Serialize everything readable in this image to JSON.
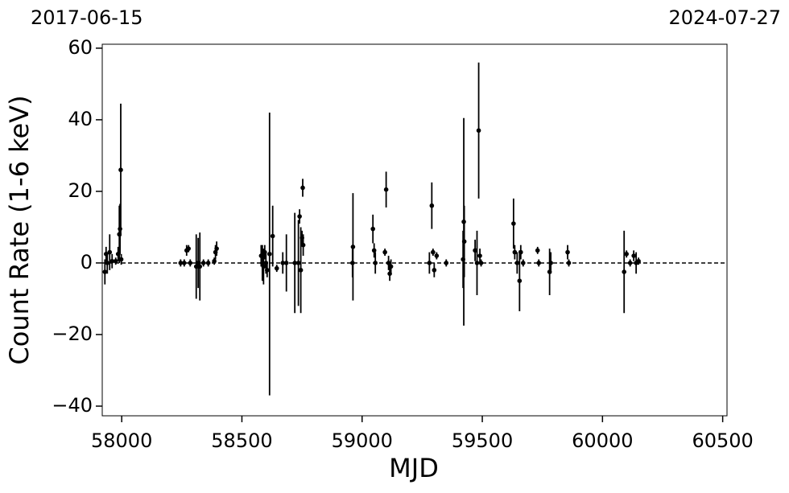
{
  "chart_data": {
    "type": "scatter",
    "top_labels": [
      "2017-06-15",
      "2024-07-27"
    ],
    "xlabel": "MJD",
    "ylabel": "Count Rate (1-6 keV)",
    "color": "#000000",
    "x": [
      57930,
      57935,
      57940,
      57950,
      57960,
      57975,
      57985,
      57990,
      57993,
      57996,
      57998,
      58245,
      58260,
      58270,
      58278,
      58285,
      58310,
      58318,
      58325,
      58340,
      58360,
      58385,
      58390,
      58395,
      58580,
      58585,
      58590,
      58595,
      58600,
      58605,
      58615,
      58628,
      58645,
      58670,
      58685,
      58720,
      58735,
      58740,
      58745,
      58750,
      58753,
      58755,
      58960,
      58962,
      59045,
      59050,
      59055,
      59095,
      59100,
      59110,
      59115,
      59120,
      59280,
      59290,
      59295,
      59300,
      59310,
      59350,
      59420,
      59423,
      59425,
      59470,
      59478,
      59485,
      59490,
      59495,
      59630,
      59635,
      59645,
      59655,
      59660,
      59670,
      59730,
      59735,
      59780,
      59785,
      59855,
      59860,
      60090,
      60100,
      60115,
      60130,
      60140,
      60150
    ],
    "values": [
      -2.5,
      2.5,
      0,
      3,
      0.5,
      0.5,
      2.5,
      8,
      9.5,
      26,
      1,
      0,
      0,
      3.5,
      4,
      0,
      -1,
      0,
      -1,
      0,
      0,
      0.5,
      3,
      4,
      2,
      0,
      -1,
      3,
      0,
      -2,
      2.5,
      7.5,
      -1.5,
      0,
      0,
      0,
      0,
      13,
      -2,
      7,
      21,
      5,
      0,
      4.5,
      9.5,
      3.5,
      0,
      3,
      20.5,
      0,
      -3,
      -1,
      0,
      16,
      3,
      -2,
      2,
      0,
      1,
      11.5,
      6,
      3.5,
      0,
      37,
      2,
      0,
      11,
      3,
      0,
      -5,
      3,
      0,
      3.5,
      0,
      -2.5,
      0,
      3,
      0,
      -2.5,
      2.5,
      0,
      2,
      0,
      0.5
    ],
    "errors": [
      3.5,
      2,
      3,
      5,
      2,
      1,
      2,
      8,
      7,
      18.5,
      1.5,
      1,
      1,
      1.5,
      1,
      1,
      9,
      7,
      9.5,
      1,
      1,
      1,
      2,
      2,
      3,
      5,
      5,
      2,
      3,
      2,
      39.5,
      8.5,
      1,
      3,
      8,
      14,
      12,
      2,
      12,
      2,
      2.5,
      3,
      4,
      15,
      4,
      2,
      3,
      1,
      5,
      2,
      2,
      2,
      3,
      6.5,
      1,
      2,
      1,
      1,
      8,
      29,
      10,
      3,
      9,
      19,
      2,
      1,
      7,
      2,
      3,
      8.5,
      2,
      1,
      1,
      1,
      6.5,
      3,
      2,
      1,
      11.5,
      1,
      1,
      1.5,
      3,
      1
    ],
    "hline": 0,
    "xlim": [
      57919,
      60518
    ],
    "xticks": [
      58000,
      58500,
      59000,
      59500,
      60000,
      60500
    ],
    "ylim": [
      -42.7,
      61.1
    ],
    "yticks": [
      {
        "value": -40,
        "label": "−40"
      },
      {
        "value": -20,
        "label": "−20"
      },
      0,
      20,
      40,
      60
    ]
  }
}
